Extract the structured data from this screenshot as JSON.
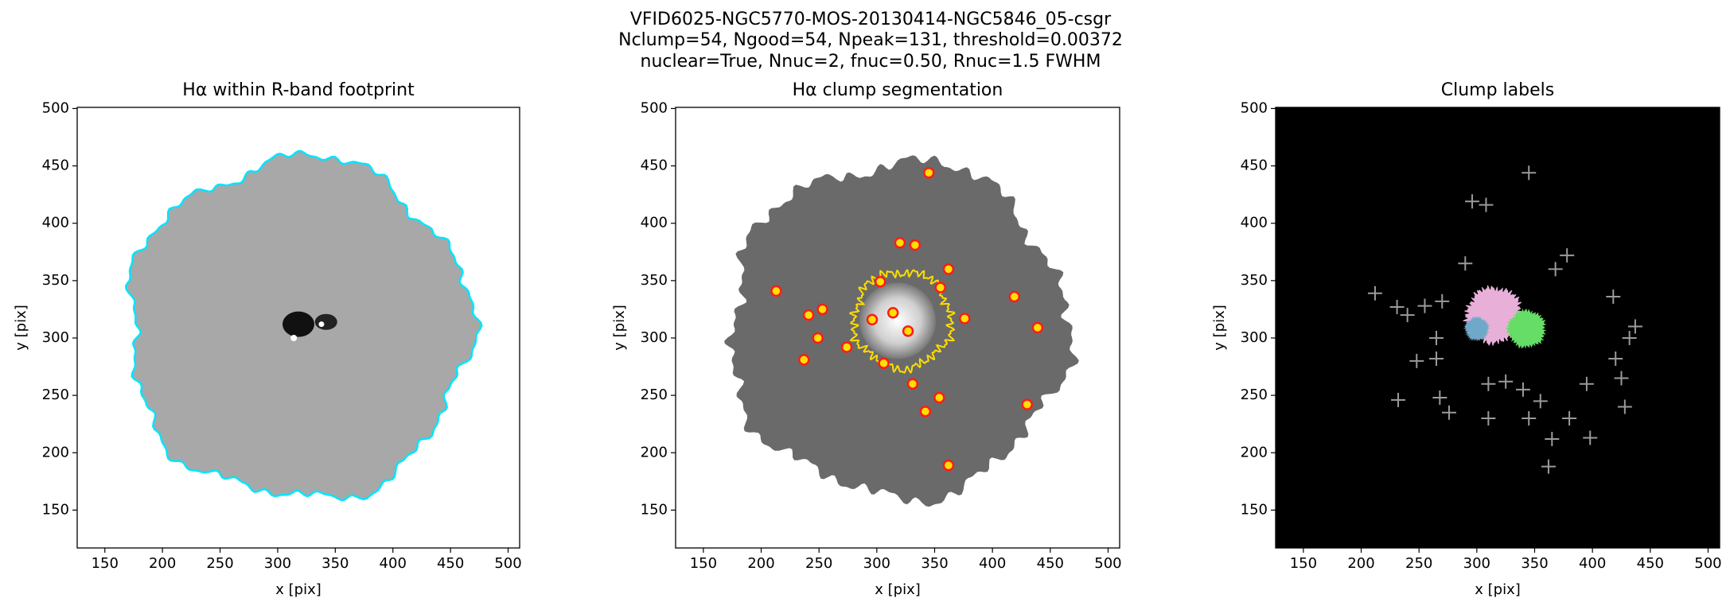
{
  "title": [
    "VFID6025-NGC5770-MOS-20130414-NGC5846_05-csgr",
    "Nclump=54, Ngood=54, Npeak=131, threshold=0.00372",
    "nuclear=True, Nnuc=2, fnuc=0.50, Rnuc=1.5 FWHM"
  ],
  "chart_data": [
    {
      "type": "image",
      "title": "Hα within R-band footprint",
      "xlabel": "x [pix]",
      "ylabel": "y [pix]",
      "xlim": [
        126,
        510
      ],
      "ylim": [
        117,
        501
      ],
      "xticks": [
        150,
        200,
        250,
        300,
        350,
        400,
        450,
        500
      ],
      "yticks": [
        150,
        200,
        250,
        300,
        350,
        400,
        450,
        500
      ],
      "color": "#00e5ff"
    },
    {
      "type": "scatter",
      "title": "Hα clump segmentation",
      "xlabel": "x [pix]",
      "ylabel": "y [pix]",
      "xlim": [
        126,
        510
      ],
      "ylim": [
        117,
        501
      ],
      "xticks": [
        150,
        200,
        250,
        300,
        350,
        400,
        450,
        500
      ],
      "yticks": [
        150,
        200,
        250,
        300,
        350,
        400,
        450,
        500
      ],
      "color": "#ff1a1a",
      "x": [
        345,
        213,
        241,
        253,
        249,
        237,
        274,
        331,
        354,
        342,
        362,
        419,
        439,
        430,
        320,
        333,
        362,
        355,
        376,
        314,
        327,
        306,
        296,
        303
      ],
      "y": [
        444,
        341,
        320,
        325,
        300,
        281,
        292,
        260,
        248,
        236,
        189,
        336,
        309,
        242,
        383,
        381,
        360,
        344,
        317,
        322,
        306,
        278,
        316,
        349
      ]
    },
    {
      "type": "cross",
      "title": "Clump labels",
      "xlabel": "x [pix]",
      "ylabel": "y [pix]",
      "xlim": [
        126,
        510
      ],
      "ylim": [
        117,
        501
      ],
      "xticks": [
        150,
        200,
        250,
        300,
        350,
        400,
        450,
        500
      ],
      "yticks": [
        150,
        200,
        250,
        300,
        350,
        400,
        450,
        500
      ],
      "color": "#9a9a9a",
      "x": [
        345,
        296,
        308,
        212,
        231,
        240,
        255,
        270,
        265,
        248,
        265,
        232,
        268,
        276,
        310,
        325,
        340,
        345,
        355,
        365,
        380,
        395,
        398,
        420,
        425,
        428,
        432,
        437,
        418,
        378,
        368,
        290,
        310,
        362
      ],
      "y": [
        444,
        419,
        416,
        339,
        327,
        320,
        328,
        332,
        300,
        280,
        282,
        246,
        248,
        235,
        230,
        262,
        255,
        230,
        245,
        212,
        230,
        260,
        213,
        282,
        265,
        240,
        300,
        310,
        336,
        372,
        360,
        365,
        260,
        188
      ]
    }
  ]
}
